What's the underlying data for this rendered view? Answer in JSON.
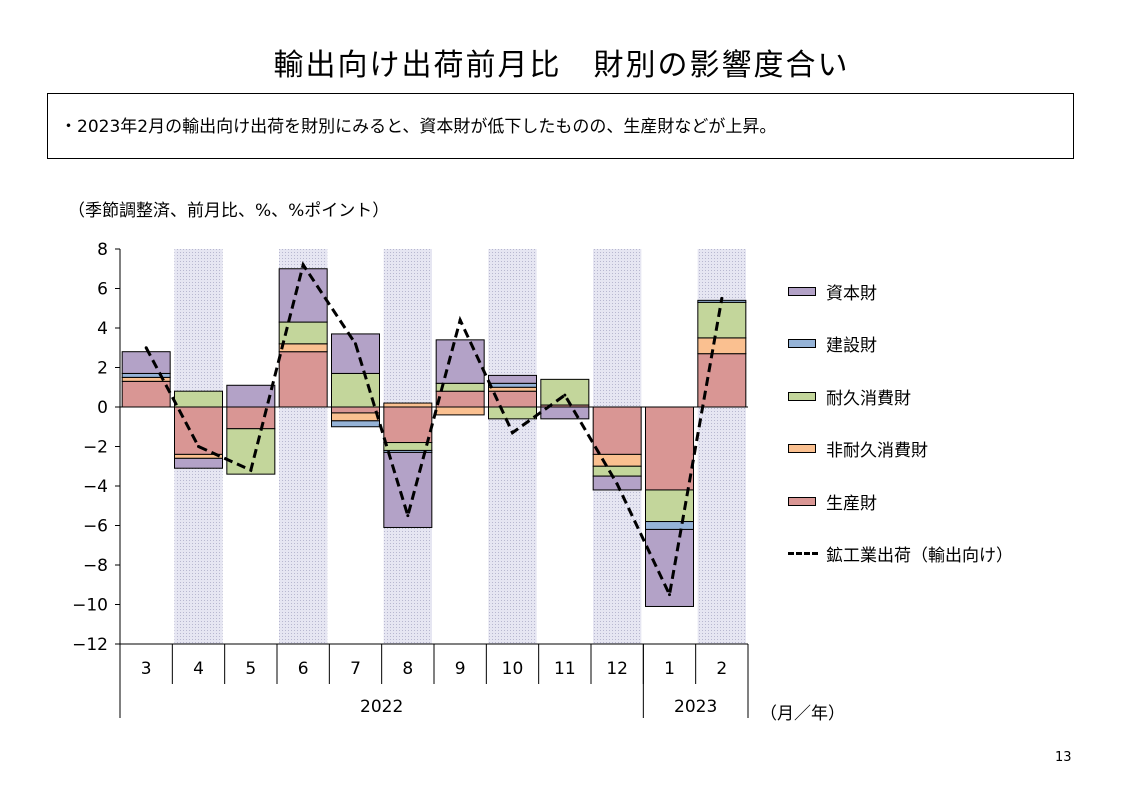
{
  "title": "輸出向け出荷前月比　財別の影響度合い",
  "summary": "・2023年2月の輸出向け出荷を財別にみると、資本財が低下したものの、生産財などが上昇。",
  "unit_note": "（季節調整済、前月比、%、%ポイント）",
  "axis_unit": "（月／年）",
  "page_number": "13",
  "colors": {
    "capital": "#b3a2c7",
    "construction": "#95b3d7",
    "durable": "#c3d69b",
    "nondurable": "#fac090",
    "production": "#d99694",
    "shade": "#dcdcef"
  },
  "chart_data": {
    "type": "bar",
    "stacked": true,
    "categories": [
      "3",
      "4",
      "5",
      "6",
      "7",
      "8",
      "9",
      "10",
      "11",
      "12",
      "1",
      "2"
    ],
    "year_labels": [
      {
        "label": "2022",
        "from": 0,
        "to": 9
      },
      {
        "label": "2023",
        "from": 10,
        "to": 11
      }
    ],
    "shaded_categories": [
      1,
      3,
      5,
      7,
      9,
      11
    ],
    "ylim": [
      -12,
      8
    ],
    "yticks": [
      "8",
      "6",
      "4",
      "2",
      "0",
      "−2",
      "−4",
      "−6",
      "−8",
      "−10",
      "−12"
    ],
    "series": [
      {
        "name": "生産財",
        "key": "production",
        "values": [
          1.3,
          -2.4,
          -1.1,
          2.8,
          -0.3,
          -1.8,
          0.8,
          0.8,
          0.1,
          -2.4,
          -4.2,
          2.7
        ]
      },
      {
        "name": "非耐久消費財",
        "key": "nondurable",
        "values": [
          0.2,
          -0.2,
          0.0,
          0.4,
          -0.4,
          0.2,
          -0.4,
          0.2,
          0.0,
          -0.6,
          0.0,
          0.8
        ]
      },
      {
        "name": "耐久消費財",
        "key": "durable",
        "values": [
          0.0,
          0.8,
          -2.3,
          1.1,
          1.7,
          -0.4,
          0.4,
          -0.6,
          1.3,
          -0.5,
          -1.6,
          1.8
        ]
      },
      {
        "name": "建設財",
        "key": "construction",
        "values": [
          0.2,
          0.0,
          0.0,
          0.0,
          -0.3,
          -0.1,
          0.0,
          0.2,
          0.0,
          0.0,
          -0.4,
          0.1
        ]
      },
      {
        "name": "資本財",
        "key": "capital",
        "values": [
          1.1,
          -0.5,
          1.1,
          2.7,
          2.0,
          -3.8,
          2.2,
          0.4,
          -0.6,
          -0.7,
          -3.9,
          0.0
        ]
      }
    ],
    "line": {
      "name": "鉱工業出荷（輸出向け）",
      "values": [
        3.0,
        -2.0,
        -3.2,
        7.2,
        3.2,
        -5.5,
        4.4,
        -1.3,
        0.6,
        -3.9,
        -9.5,
        5.5
      ]
    },
    "legend_order": [
      "資本財",
      "建設財",
      "耐久消費財",
      "非耐久消費財",
      "生産財",
      "鉱工業出荷（輸出向け）"
    ]
  }
}
